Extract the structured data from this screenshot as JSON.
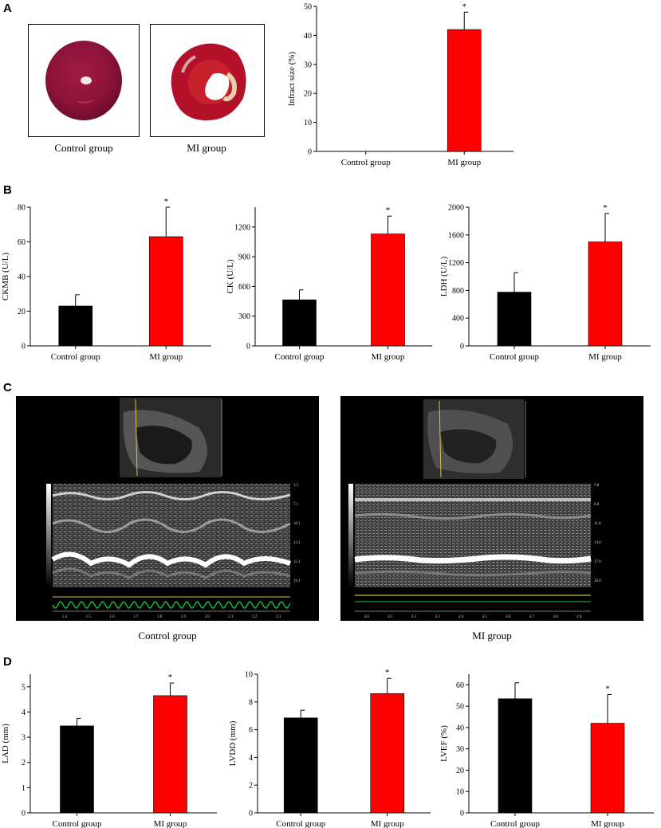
{
  "panels": {
    "a": "A",
    "b": "B",
    "c": "C",
    "d": "D"
  },
  "panel_a": {
    "photo_captions": [
      "Control group",
      "MI group"
    ]
  },
  "panel_c": {
    "captions": [
      "Control group",
      "MI group"
    ],
    "control_axis_ticks": [
      "1.4",
      "1.5",
      "1.6",
      "1.7",
      "1.8",
      "1.9",
      "2.0",
      "2.1",
      "2.2",
      "2.3"
    ],
    "mi_axis_ticks": [
      "4.0",
      "4.1",
      "4.2",
      "4.3",
      "4.4",
      "4.5",
      "4.6",
      "4.7",
      "4.8",
      "4.9"
    ],
    "control_depth_ticks": [
      "3.3",
      "7.1",
      "10.1",
      "13.1",
      "15.1",
      "19.1"
    ],
    "mi_depth_ticks": [
      "5.8",
      "8.8",
      "11.8",
      "14.8",
      "17.8",
      "20.8"
    ]
  },
  "colors": {
    "control": "#000000",
    "mi": "#ff0000"
  },
  "chart_data": [
    {
      "id": "infarct",
      "type": "bar",
      "categories": [
        "Control group",
        "MI group"
      ],
      "values": [
        0,
        42
      ],
      "errors": [
        0,
        6
      ],
      "significance": [
        "",
        "*"
      ],
      "ylabel": "Infract size (%)",
      "ylim": [
        0,
        50
      ],
      "yticks": [
        0,
        10,
        20,
        30,
        40,
        50
      ]
    },
    {
      "id": "ckmb",
      "type": "bar",
      "categories": [
        "Control group",
        "MI group"
      ],
      "values": [
        23,
        63
      ],
      "errors": [
        6.5,
        17
      ],
      "significance": [
        "",
        "*"
      ],
      "ylabel": "CKMB (U/L)",
      "ylim": [
        0,
        80
      ],
      "yticks": [
        0,
        20,
        40,
        60,
        80
      ]
    },
    {
      "id": "ck",
      "type": "bar",
      "categories": [
        "Control group",
        "MI group"
      ],
      "values": [
        465,
        1130
      ],
      "errors": [
        100,
        180
      ],
      "significance": [
        "",
        "*"
      ],
      "ylabel": "CK (U/L)",
      "ylim": [
        0,
        1400
      ],
      "yticks": [
        0,
        300,
        600,
        900,
        1200
      ]
    },
    {
      "id": "ldh",
      "type": "bar",
      "categories": [
        "Control group",
        "MI group"
      ],
      "values": [
        775,
        1500
      ],
      "errors": [
        280,
        410
      ],
      "significance": [
        "",
        "*"
      ],
      "ylabel": "LDH (U/L)",
      "ylim": [
        0,
        2000
      ],
      "yticks": [
        0,
        400,
        800,
        1200,
        1600,
        2000
      ]
    },
    {
      "id": "lad",
      "type": "bar",
      "categories": [
        "Control group",
        "MI group"
      ],
      "values": [
        3.45,
        4.65
      ],
      "errors": [
        0.3,
        0.5
      ],
      "significance": [
        "",
        "*"
      ],
      "ylabel": "LAD (mm)",
      "ylim": [
        0,
        5.5
      ],
      "yticks": [
        0,
        1,
        2,
        3,
        4,
        5
      ]
    },
    {
      "id": "lvdd",
      "type": "bar",
      "categories": [
        "Control group",
        "MI group"
      ],
      "values": [
        6.85,
        8.6
      ],
      "errors": [
        0.55,
        1.1
      ],
      "significance": [
        "",
        "*"
      ],
      "ylabel": "LVDD (mm)",
      "ylim": [
        0,
        10
      ],
      "yticks": [
        0,
        2,
        4,
        6,
        8,
        10
      ]
    },
    {
      "id": "lvef",
      "type": "bar",
      "categories": [
        "Control group",
        "MI group"
      ],
      "values": [
        53.5,
        42
      ],
      "errors": [
        7.5,
        13.5
      ],
      "significance": [
        "",
        "*"
      ],
      "ylabel": "LVEF (%)",
      "ylim": [
        0,
        65
      ],
      "yticks": [
        0,
        10,
        20,
        30,
        40,
        50,
        60
      ]
    }
  ]
}
